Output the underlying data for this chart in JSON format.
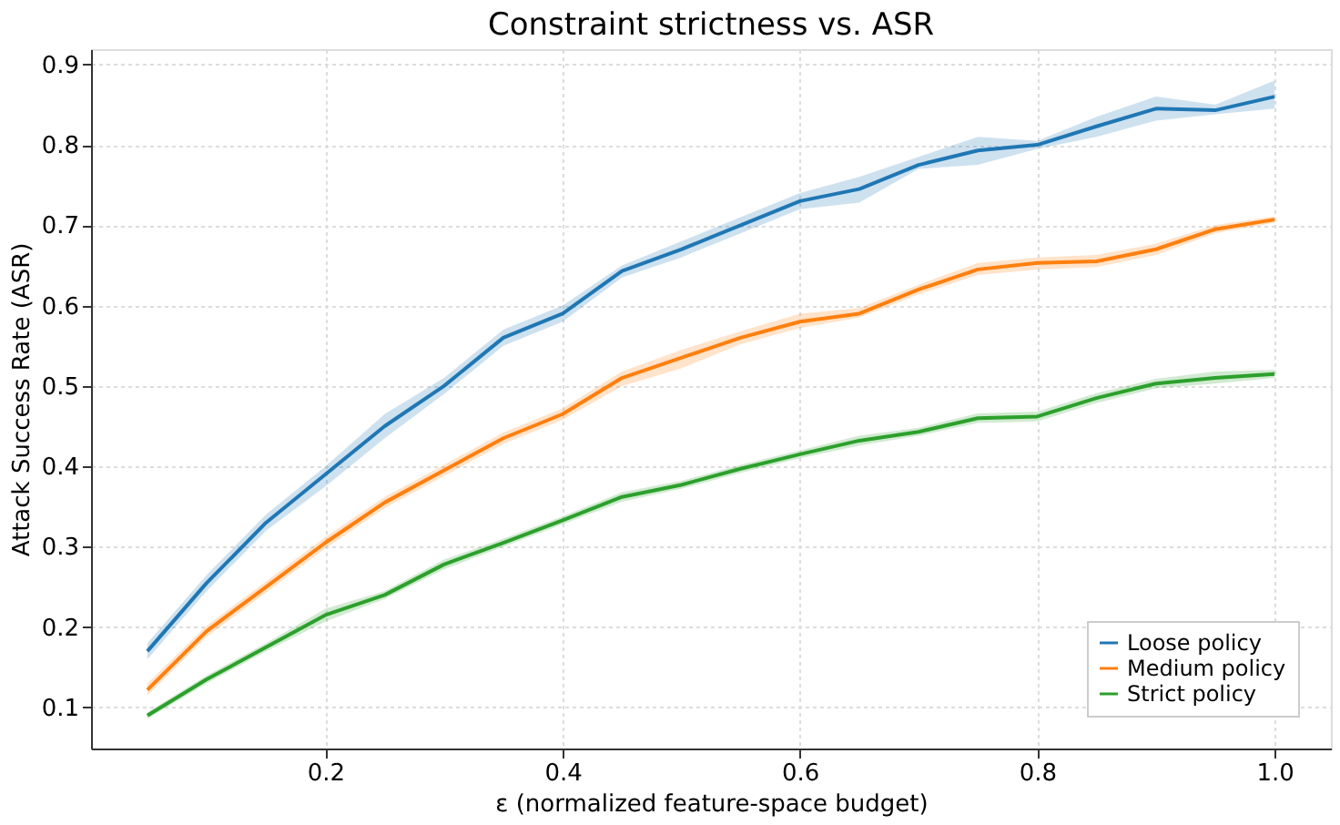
{
  "chart_data": {
    "type": "line",
    "title": "Constraint strictness vs. ASR",
    "xlabel": "ε (normalized feature-space budget)",
    "ylabel": "Attack Success Rate (ASR)",
    "x": [
      0.05,
      0.1,
      0.15,
      0.2,
      0.25,
      0.3,
      0.35,
      0.4,
      0.45,
      0.5,
      0.55,
      0.6,
      0.65,
      0.7,
      0.75,
      0.8,
      0.85,
      0.9,
      0.95,
      1.0
    ],
    "series": [
      {
        "name": "Loose policy",
        "color": "#1f77b4",
        "values": [
          0.17,
          0.255,
          0.33,
          0.39,
          0.45,
          0.5,
          0.56,
          0.59,
          0.643,
          0.67,
          0.7,
          0.73,
          0.745,
          0.775,
          0.793,
          0.8,
          0.823,
          0.845,
          0.843,
          0.86
        ],
        "lower": [
          0.16,
          0.245,
          0.32,
          0.375,
          0.435,
          0.49,
          0.55,
          0.58,
          0.635,
          0.66,
          0.69,
          0.72,
          0.728,
          0.77,
          0.775,
          0.795,
          0.81,
          0.83,
          0.838,
          0.845
        ],
        "upper": [
          0.18,
          0.265,
          0.34,
          0.4,
          0.465,
          0.51,
          0.57,
          0.6,
          0.65,
          0.68,
          0.71,
          0.74,
          0.76,
          0.785,
          0.81,
          0.805,
          0.835,
          0.86,
          0.85,
          0.88
        ]
      },
      {
        "name": "Medium policy",
        "color": "#ff7f0e",
        "values": [
          0.122,
          0.195,
          0.25,
          0.305,
          0.355,
          0.395,
          0.435,
          0.465,
          0.51,
          0.535,
          0.56,
          0.58,
          0.59,
          0.62,
          0.645,
          0.653,
          0.655,
          0.67,
          0.695,
          0.707
        ],
        "lower": [
          0.115,
          0.188,
          0.243,
          0.298,
          0.348,
          0.388,
          0.428,
          0.458,
          0.5,
          0.522,
          0.552,
          0.572,
          0.585,
          0.614,
          0.638,
          0.645,
          0.648,
          0.663,
          0.69,
          0.703
        ],
        "upper": [
          0.13,
          0.202,
          0.257,
          0.312,
          0.362,
          0.402,
          0.442,
          0.472,
          0.518,
          0.545,
          0.568,
          0.59,
          0.597,
          0.626,
          0.653,
          0.66,
          0.663,
          0.677,
          0.7,
          0.711
        ]
      },
      {
        "name": "Strict policy",
        "color": "#2ca02c",
        "values": [
          0.09,
          0.135,
          0.175,
          0.215,
          0.24,
          0.278,
          0.305,
          0.333,
          0.362,
          0.377,
          0.397,
          0.415,
          0.432,
          0.443,
          0.46,
          0.462,
          0.485,
          0.503,
          0.51,
          0.515
        ],
        "lower": [
          0.086,
          0.13,
          0.17,
          0.207,
          0.235,
          0.272,
          0.3,
          0.328,
          0.356,
          0.372,
          0.392,
          0.41,
          0.426,
          0.438,
          0.454,
          0.456,
          0.479,
          0.497,
          0.503,
          0.51
        ],
        "upper": [
          0.094,
          0.14,
          0.18,
          0.223,
          0.245,
          0.284,
          0.31,
          0.338,
          0.368,
          0.382,
          0.402,
          0.42,
          0.438,
          0.448,
          0.466,
          0.468,
          0.491,
          0.509,
          0.518,
          0.52
        ]
      }
    ],
    "xlim": [
      0.0025,
      1.0475
    ],
    "xticks": [
      0.2,
      0.4,
      0.6,
      0.8,
      {
        "value": 1.0,
        "label": "1.0"
      }
    ],
    "ylim": [
      0.049,
      0.919
    ],
    "yticks": [
      0.1,
      0.2,
      0.3,
      0.4,
      0.5,
      0.6,
      0.7,
      0.8,
      0.9
    ],
    "grid": true,
    "legend": "bottom right",
    "line_style": "solid",
    "marker": "none"
  }
}
